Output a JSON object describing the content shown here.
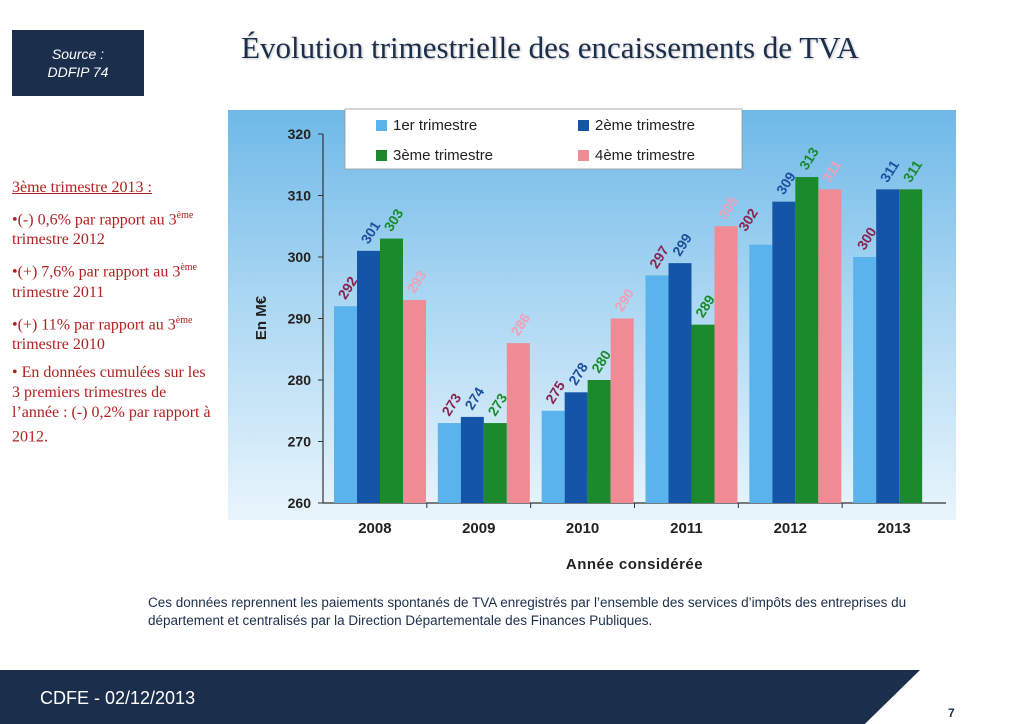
{
  "source": {
    "line1": "Source :",
    "line2": "DDFIP 74"
  },
  "title": "Évolution trimestrielle des encaissements de TVA",
  "notes": {
    "heading": "3ème trimestre 2013 :",
    "bullets": [
      {
        "before": "•(-) 0,6% par rapport au 3",
        "sup": "ème",
        "after": " trimestre 2012"
      },
      {
        "before": "•(+) 7,6% par rapport au 3",
        "sup": "ème",
        "after": " trimestre 2011"
      },
      {
        "before": "•(+) 11% par rapport au 3",
        "sup": "ème",
        "after": " trimestre 2010"
      },
      {
        "before": "• En données cumulées sur les 3 premiers trimestres de l’année : (-) 0,2% par rapport à 2012.",
        "sup": "",
        "after": ""
      }
    ]
  },
  "chart_data": {
    "type": "bar",
    "categories": [
      "2008",
      "2009",
      "2010",
      "2011",
      "2012",
      "2013"
    ],
    "series": [
      {
        "name": "1er trimestre",
        "color": "#5ab3ec",
        "label_color": "#8a2250",
        "values": [
          292,
          273,
          275,
          297,
          302,
          300
        ],
        "labels": [
          "292",
          "273",
          "275",
          "297",
          "",
          "300"
        ]
      },
      {
        "name": "2ème trimestre",
        "color": "#1555a8",
        "label_color": "#1d4ea0",
        "values": [
          301,
          274,
          278,
          299,
          309,
          311
        ],
        "labels": [
          "301",
          "274",
          "278",
          "299",
          "309",
          "311"
        ]
      },
      {
        "name": "3ème trimestre",
        "color": "#1a8a2c",
        "label_color": "#1a8a2c",
        "values": [
          303,
          273,
          280,
          289,
          313,
          311
        ],
        "labels": [
          "303",
          "273",
          "280",
          "289",
          "313",
          "311"
        ]
      },
      {
        "name": "4ème trimestre",
        "color": "#f08a94",
        "label_color": "#f0a0b8",
        "values": [
          293,
          286,
          290,
          305,
          311,
          null
        ],
        "labels": [
          "293",
          "286",
          "290",
          "305",
          "311",
          ""
        ]
      }
    ],
    "extra_labels": [
      {
        "category_index": 3,
        "after_series": 3,
        "text": "302",
        "color": "#8a2250"
      }
    ],
    "ylim": [
      260,
      320
    ],
    "yticks": [
      260,
      270,
      280,
      290,
      300,
      310,
      320
    ],
    "ylabel": "En M€",
    "xlabel": "Année considérée",
    "legend_position": "top",
    "grid": false
  },
  "footnote": "Ces données reprennent les paiements spontanés de TVA enregistrés par l’ensemble des services d’impôts des entreprises du département et centralisés par la Direction Départementale des Finances Publiques.",
  "footer": {
    "text": "CDFE - 02/12/2013",
    "page": "7"
  }
}
